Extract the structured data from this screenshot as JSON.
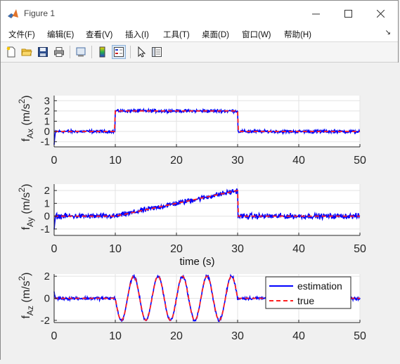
{
  "window": {
    "title": "Figure 1"
  },
  "menu": {
    "items": [
      "文件(F)",
      "编辑(E)",
      "查看(V)",
      "插入(I)",
      "工具(T)",
      "桌面(D)",
      "窗口(W)",
      "帮助(H)"
    ]
  },
  "toolbar": {
    "buttons": [
      "new-figure",
      "open-file",
      "save",
      "print",
      "print-preview",
      "insert-colorbar",
      "insert-legend",
      "edit-plot",
      "property-inspector"
    ]
  },
  "colors": {
    "estimation": "#0000ff",
    "true": "#ff2020"
  },
  "legend": {
    "estimation_label": "estimation",
    "true_label": "true"
  },
  "chart_data": [
    {
      "type": "line",
      "ylabel": "f_Ax (m/s²)",
      "ylabel_main": "f",
      "ylabel_sub": "Ax",
      "ylabel_unit": " (m/s",
      "ylabel_unit_sup": "2",
      "ylabel_close": ")",
      "xlabel": "",
      "xlim": [
        0,
        50
      ],
      "ylim": [
        -1.5,
        3.5
      ],
      "xticks": [
        0,
        10,
        20,
        30,
        40,
        50
      ],
      "yticks": [
        -1,
        0,
        1,
        2,
        3
      ],
      "grid": true,
      "true_signal": "step: 0 for t<10, 2 for 10<=t<=30, 0 for t>30",
      "series": [
        {
          "name": "estimation",
          "x": [
            0,
            10,
            10,
            30,
            30,
            50
          ],
          "y": [
            0,
            0,
            2,
            2,
            0,
            0
          ]
        },
        {
          "name": "true",
          "x": [
            0,
            10,
            10,
            30,
            30,
            50
          ],
          "y": [
            0,
            0,
            2,
            2,
            0,
            0
          ]
        }
      ]
    },
    {
      "type": "line",
      "ylabel": "f_Ay (m/s²)",
      "ylabel_main": "f",
      "ylabel_sub": "Ay",
      "ylabel_unit": " (m/s",
      "ylabel_unit_sup": "2",
      "ylabel_close": ")",
      "xlabel": "time (s)",
      "xlim": [
        0,
        50
      ],
      "ylim": [
        -1.5,
        2.5
      ],
      "xticks": [
        0,
        10,
        20,
        30,
        40,
        50
      ],
      "yticks": [
        -1,
        0,
        1,
        2
      ],
      "grid": true,
      "true_signal": "ramp: 0 for t<10, rising linearly to 2 at t=30, 0 for t>30",
      "series": [
        {
          "name": "estimation",
          "x": [
            0,
            10,
            30,
            30,
            50
          ],
          "y": [
            0,
            0,
            2,
            0,
            0
          ]
        },
        {
          "name": "true",
          "x": [
            0,
            10,
            30,
            30,
            50
          ],
          "y": [
            0,
            0,
            2,
            0,
            0
          ]
        }
      ]
    },
    {
      "type": "line",
      "ylabel": "f_Az (m/s²)",
      "ylabel_main": "f",
      "ylabel_sub": "Az",
      "ylabel_unit": " (m/s",
      "ylabel_unit_sup": "2",
      "ylabel_close": ")",
      "xlabel": "",
      "xlim": [
        0,
        50
      ],
      "ylim": [
        -2.2,
        2.2
      ],
      "xticks": [
        0,
        10,
        20,
        30,
        40,
        50
      ],
      "yticks": [
        -2,
        0,
        2
      ],
      "grid": true,
      "legend_position": "top-right",
      "true_signal": "sine of amplitude 2, period 4 s for 10<=t<=30, 0 elsewhere",
      "series": [
        {
          "name": "estimation",
          "x": [
            0,
            10,
            11,
            13,
            15,
            17,
            19,
            21,
            23,
            25,
            27,
            29,
            30,
            50
          ],
          "y": [
            0,
            0,
            -2,
            2,
            -2,
            2,
            -2,
            2,
            -2,
            2,
            -2,
            2,
            0,
            0
          ]
        },
        {
          "name": "true",
          "x": [
            0,
            10,
            11,
            13,
            15,
            17,
            19,
            21,
            23,
            25,
            27,
            29,
            30,
            50
          ],
          "y": [
            0,
            0,
            -2,
            2,
            -2,
            2,
            -2,
            2,
            -2,
            2,
            -2,
            2,
            0,
            0
          ]
        }
      ]
    }
  ]
}
